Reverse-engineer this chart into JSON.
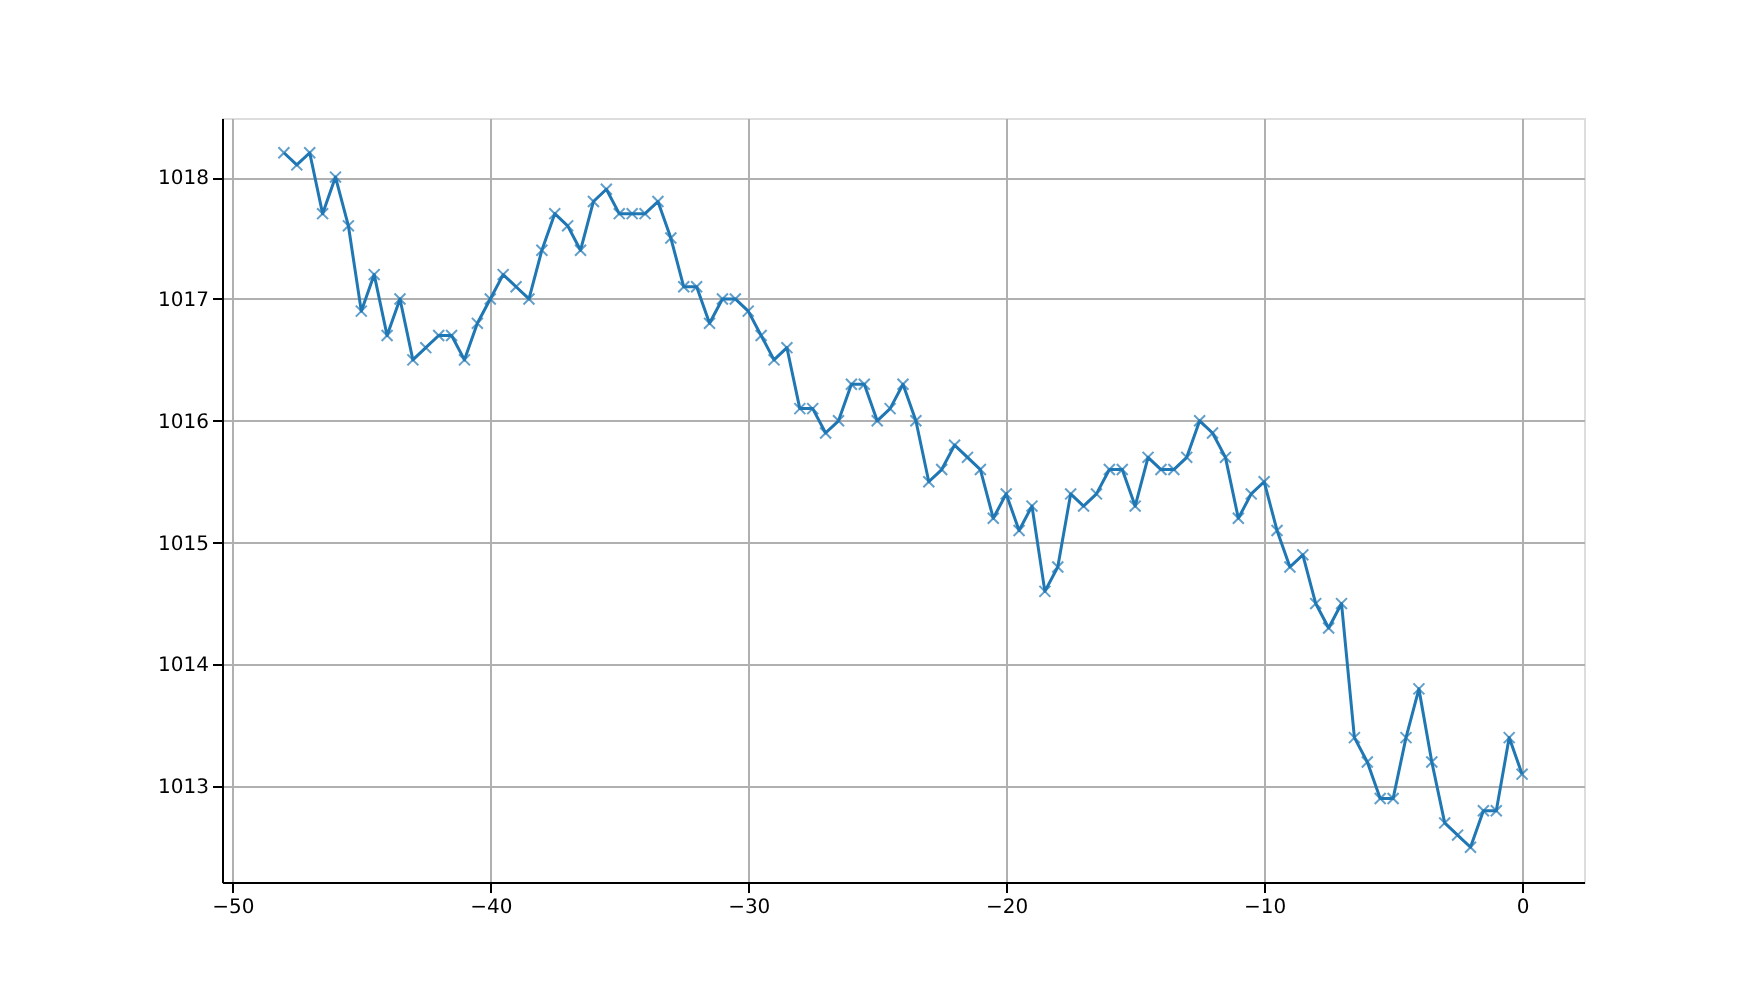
{
  "chart_data": {
    "type": "line",
    "x": [
      -48,
      -47.5,
      -47,
      -46.5,
      -46,
      -45.5,
      -45,
      -44.5,
      -44,
      -43.5,
      -43,
      -42.5,
      -42,
      -41.5,
      -41,
      -40.5,
      -40,
      -39.5,
      -39,
      -38.5,
      -38,
      -37.5,
      -37,
      -36.5,
      -36,
      -35.5,
      -35,
      -34.5,
      -34,
      -33.5,
      -33,
      -32.5,
      -32,
      -31.5,
      -31,
      -30.5,
      -30,
      -29.5,
      -29,
      -28.5,
      -28,
      -27.5,
      -27,
      -26.5,
      -26,
      -25.5,
      -25,
      -24.5,
      -24,
      -23.5,
      -23,
      -22.5,
      -22,
      -21.5,
      -21,
      -20.5,
      -20,
      -19.5,
      -19,
      -18.5,
      -18,
      -17.5,
      -17,
      -16.5,
      -16,
      -15.5,
      -15,
      -14.5,
      -14,
      -13.5,
      -13,
      -12.5,
      -12,
      -11.5,
      -11,
      -10.5,
      -10,
      -9.5,
      -9,
      -8.5,
      -8,
      -7.5,
      -7,
      -6.5,
      -6,
      -5.5,
      -5,
      -4.5,
      -4,
      -3.5,
      -3,
      -2.5,
      -2,
      -1.5,
      -1,
      -0.5,
      0
    ],
    "series": [
      {
        "color": "#1f77b4",
        "values": [
          1018.2,
          1018.1,
          1018.2,
          1017.7,
          1018.0,
          1017.6,
          1016.9,
          1017.2,
          1016.7,
          1017.0,
          1016.5,
          1016.6,
          1016.7,
          1016.7,
          1016.5,
          1016.8,
          1017.0,
          1017.2,
          1017.1,
          1017.0,
          1017.4,
          1017.7,
          1017.6,
          1017.4,
          1017.8,
          1017.9,
          1017.7,
          1017.7,
          1017.7,
          1017.8,
          1017.5,
          1017.1,
          1017.1,
          1016.8,
          1017.0,
          1017.0,
          1016.9,
          1016.7,
          1016.5,
          1016.6,
          1016.1,
          1016.1,
          1015.9,
          1016.0,
          1016.3,
          1016.3,
          1016.0,
          1016.1,
          1016.3,
          1016.0,
          1015.5,
          1015.6,
          1015.8,
          1015.7,
          1015.6,
          1015.2,
          1015.4,
          1015.1,
          1015.3,
          1014.6,
          1014.8,
          1015.4,
          1015.3,
          1015.4,
          1015.6,
          1015.6,
          1015.3,
          1015.7,
          1015.6,
          1015.6,
          1015.7,
          1016.0,
          1015.9,
          1015.7,
          1015.2,
          1015.4,
          1015.5,
          1015.1,
          1014.8,
          1014.9,
          1014.5,
          1014.3,
          1014.5,
          1013.4,
          1013.2,
          1012.9,
          1012.9,
          1013.4,
          1013.8,
          1013.2,
          1012.7,
          1012.6,
          1012.5,
          1012.8,
          1012.8,
          1013.4,
          1013.1
        ]
      }
    ],
    "xlim": [
      -50.4,
      2.4
    ],
    "ylim": [
      1012.215,
      1018.485
    ],
    "xticks": [
      -50,
      -40,
      -30,
      -20,
      -10,
      0
    ],
    "yticks": [
      1013,
      1014,
      1015,
      1016,
      1017,
      1018
    ],
    "grid": true,
    "marker": "cross",
    "line_style": "solid",
    "legend": false
  }
}
